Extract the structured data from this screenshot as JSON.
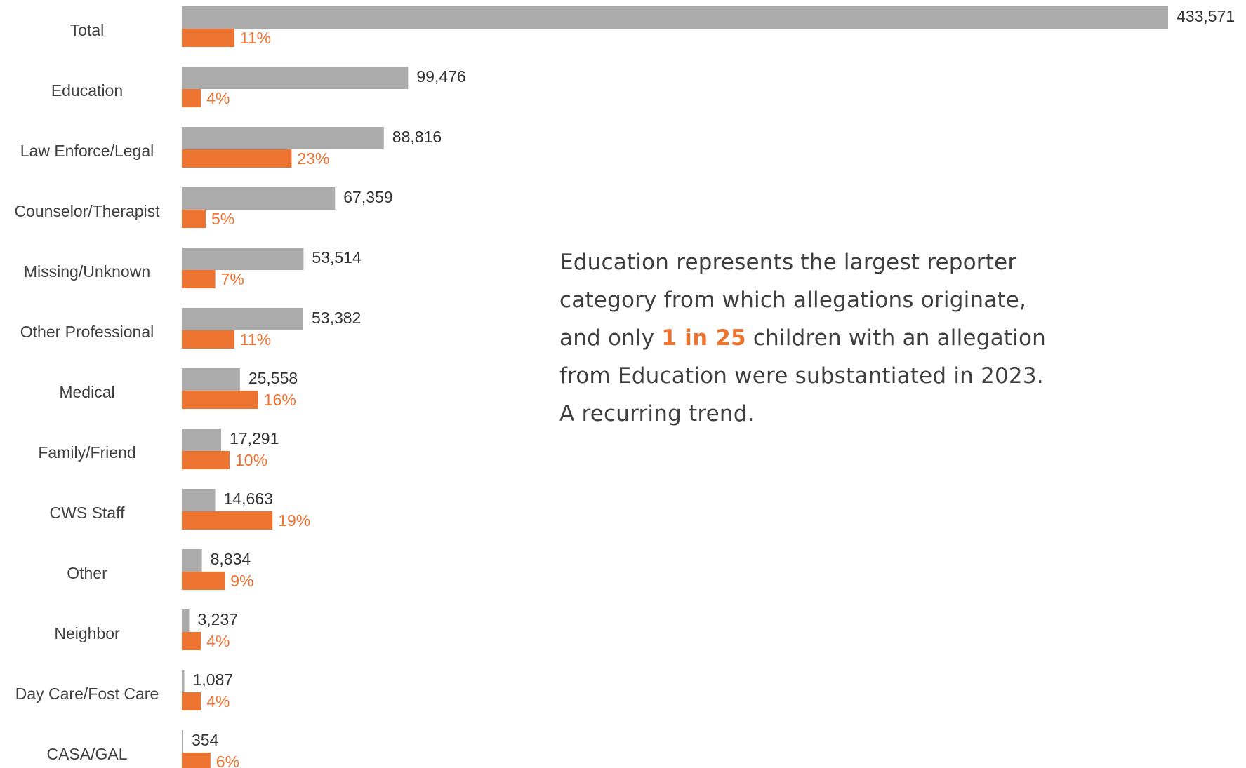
{
  "colors": {
    "count_bar": "#ABABAB",
    "rate_bar": "#ED7331",
    "text": "#404040"
  },
  "callout": {
    "line1": "Education represents the largest reporter",
    "line2": "category from which allegations originate,",
    "line3_pre": "and only ",
    "line3_highlight": "1 in 25",
    "line3_post": " children with an allegation",
    "line4": "from Education were substantiated in 2023.",
    "line5": "A recurring trend."
  },
  "chart_data": {
    "type": "bar",
    "orientation": "horizontal",
    "categories": [
      "Total",
      "Education",
      "Law Enforce/Legal",
      "Counselor/Therapist",
      "Missing/Unknown",
      "Other Professional",
      "Medical",
      "Family/Friend",
      "CWS Staff",
      "Other",
      "Neighbor",
      "Day Care/Fost Care",
      "CASA/GAL"
    ],
    "series": [
      {
        "values": [
          433571,
          99476,
          88816,
          67359,
          53514,
          53382,
          25558,
          17291,
          14663,
          8834,
          3237,
          1087,
          354
        ],
        "labels": [
          "433,571",
          "99,476",
          "88,816",
          "67,359",
          "53,514",
          "53,382",
          "25,558",
          "17,291",
          "14,663",
          "8,834",
          "3,237",
          "1,087",
          "354"
        ],
        "color": "#ABABAB"
      },
      {
        "values": [
          11,
          4,
          23,
          5,
          7,
          11,
          16,
          10,
          19,
          9,
          4,
          4,
          6
        ],
        "labels": [
          "11%",
          "4%",
          "23%",
          "5%",
          "7%",
          "11%",
          "16%",
          "10%",
          "19%",
          "9%",
          "4%",
          "4%",
          "6%"
        ],
        "color": "#ED7331"
      }
    ],
    "xlim_counts": [
      0,
      433571
    ],
    "xlim_percent": [
      0,
      100
    ],
    "grid": false,
    "legend": "none"
  }
}
